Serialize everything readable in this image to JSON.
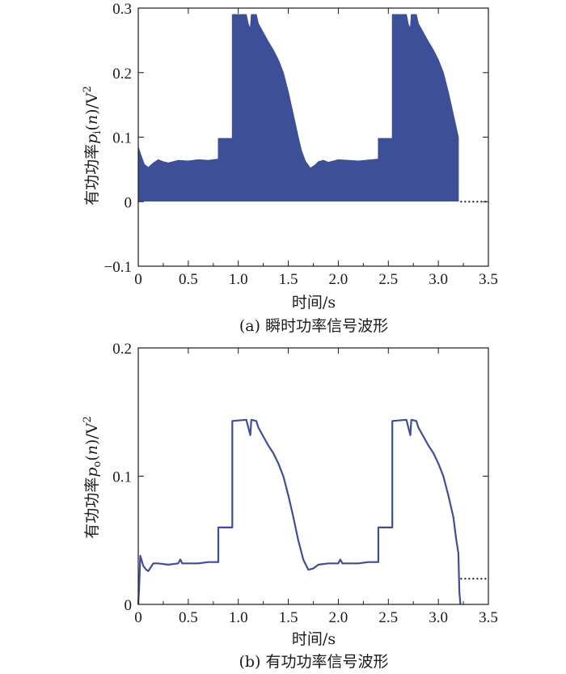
{
  "accent_color": "#3d4f97",
  "chart_data": [
    {
      "type": "area",
      "caption": "(a) 瞬时功率信号波形",
      "xlabel": "时间/s",
      "ylabel": "有功功率p_i(n)/V²",
      "ylabel_parts": {
        "prefix": "有功功率",
        "var": "p",
        "sub": "i",
        "paren": "(",
        "n": "n",
        "close": ")/V",
        "sup": "2"
      },
      "xlim": [
        0,
        3.5
      ],
      "ylim": [
        -0.1,
        0.3
      ],
      "xticks": [
        "0",
        "0.5",
        "1.0",
        "1.5",
        "2.0",
        "2.5",
        "3.0",
        "3.5"
      ],
      "yticks": [
        "−0.1",
        "0",
        "0.1",
        "0.2",
        "0.3"
      ],
      "grid": false,
      "continuation": "dotted line after t = 3.2 s at y = 0",
      "envelope": {
        "x": [
          0,
          0.02,
          0.06,
          0.1,
          0.15,
          0.2,
          0.25,
          0.3,
          0.4,
          0.5,
          0.6,
          0.7,
          0.8,
          0.8,
          0.94,
          0.94,
          1.08,
          1.1,
          1.12,
          1.13,
          1.18,
          1.2,
          1.25,
          1.3,
          1.35,
          1.4,
          1.45,
          1.5,
          1.55,
          1.6,
          1.63,
          1.67,
          1.72,
          1.77,
          1.8,
          1.85,
          1.9,
          2.0,
          2.2,
          2.4,
          2.4,
          2.54,
          2.54,
          2.68,
          2.7,
          2.72,
          2.73,
          2.78,
          2.8,
          2.85,
          2.9,
          2.95,
          3.0,
          3.05,
          3.1,
          3.15,
          3.2,
          3.2
        ],
        "upper": [
          0.085,
          0.075,
          0.058,
          0.053,
          0.06,
          0.065,
          0.062,
          0.06,
          0.064,
          0.063,
          0.065,
          0.064,
          0.066,
          0.098,
          0.098,
          0.29,
          0.29,
          0.275,
          0.268,
          0.29,
          0.29,
          0.276,
          0.262,
          0.248,
          0.235,
          0.22,
          0.2,
          0.17,
          0.135,
          0.1,
          0.08,
          0.063,
          0.052,
          0.057,
          0.062,
          0.064,
          0.061,
          0.065,
          0.063,
          0.066,
          0.098,
          0.098,
          0.29,
          0.29,
          0.275,
          0.268,
          0.29,
          0.29,
          0.276,
          0.262,
          0.248,
          0.235,
          0.22,
          0.2,
          0.17,
          0.135,
          0.1,
          0
        ],
        "lower": 0.001
      }
    },
    {
      "type": "line",
      "caption": "(b) 有功功率信号波形",
      "xlabel": "时间/s",
      "ylabel": "有功功率p_o(n)/V²",
      "ylabel_parts": {
        "prefix": "有功功率",
        "var": "p",
        "sub": "o",
        "paren": "(",
        "n": "n",
        "close": ")/V",
        "sup": "2"
      },
      "xlim": [
        0,
        3.5
      ],
      "ylim": [
        0,
        0.2
      ],
      "xticks": [
        "0",
        "0.5",
        "1.0",
        "1.5",
        "2.0",
        "2.5",
        "3.0",
        "3.5"
      ],
      "yticks": [
        "0",
        "0.1",
        "0.2"
      ],
      "grid": false,
      "continuation": "dotted line after t = 3.2 s at y = 0.02",
      "series": [
        {
          "x": [
            0,
            0.01,
            0.02,
            0.05,
            0.08,
            0.1,
            0.15,
            0.2,
            0.3,
            0.4,
            0.42,
            0.44,
            0.5,
            0.6,
            0.7,
            0.8,
            0.8,
            0.94,
            0.94,
            1.08,
            1.1,
            1.12,
            1.13,
            1.18,
            1.2,
            1.25,
            1.3,
            1.35,
            1.4,
            1.45,
            1.5,
            1.55,
            1.6,
            1.65,
            1.7,
            1.75,
            1.8,
            1.9,
            2.0,
            2.02,
            2.04,
            2.1,
            2.2,
            2.3,
            2.4,
            2.4,
            2.54,
            2.54,
            2.68,
            2.7,
            2.72,
            2.73,
            2.78,
            2.8,
            2.85,
            2.9,
            2.95,
            3.0,
            3.05,
            3.1,
            3.15,
            3.18,
            3.2,
            3.21,
            3.22
          ],
          "y": [
            0,
            0.015,
            0.038,
            0.03,
            0.027,
            0.026,
            0.032,
            0.032,
            0.031,
            0.032,
            0.035,
            0.032,
            0.032,
            0.032,
            0.033,
            0.033,
            0.06,
            0.06,
            0.143,
            0.144,
            0.138,
            0.132,
            0.144,
            0.143,
            0.138,
            0.131,
            0.124,
            0.118,
            0.11,
            0.1,
            0.085,
            0.068,
            0.05,
            0.035,
            0.027,
            0.028,
            0.031,
            0.032,
            0.032,
            0.035,
            0.032,
            0.032,
            0.032,
            0.033,
            0.033,
            0.06,
            0.06,
            0.143,
            0.144,
            0.138,
            0.132,
            0.144,
            0.143,
            0.138,
            0.131,
            0.124,
            0.118,
            0.11,
            0.1,
            0.085,
            0.068,
            0.05,
            0.04,
            0.01,
            0
          ]
        }
      ]
    }
  ]
}
